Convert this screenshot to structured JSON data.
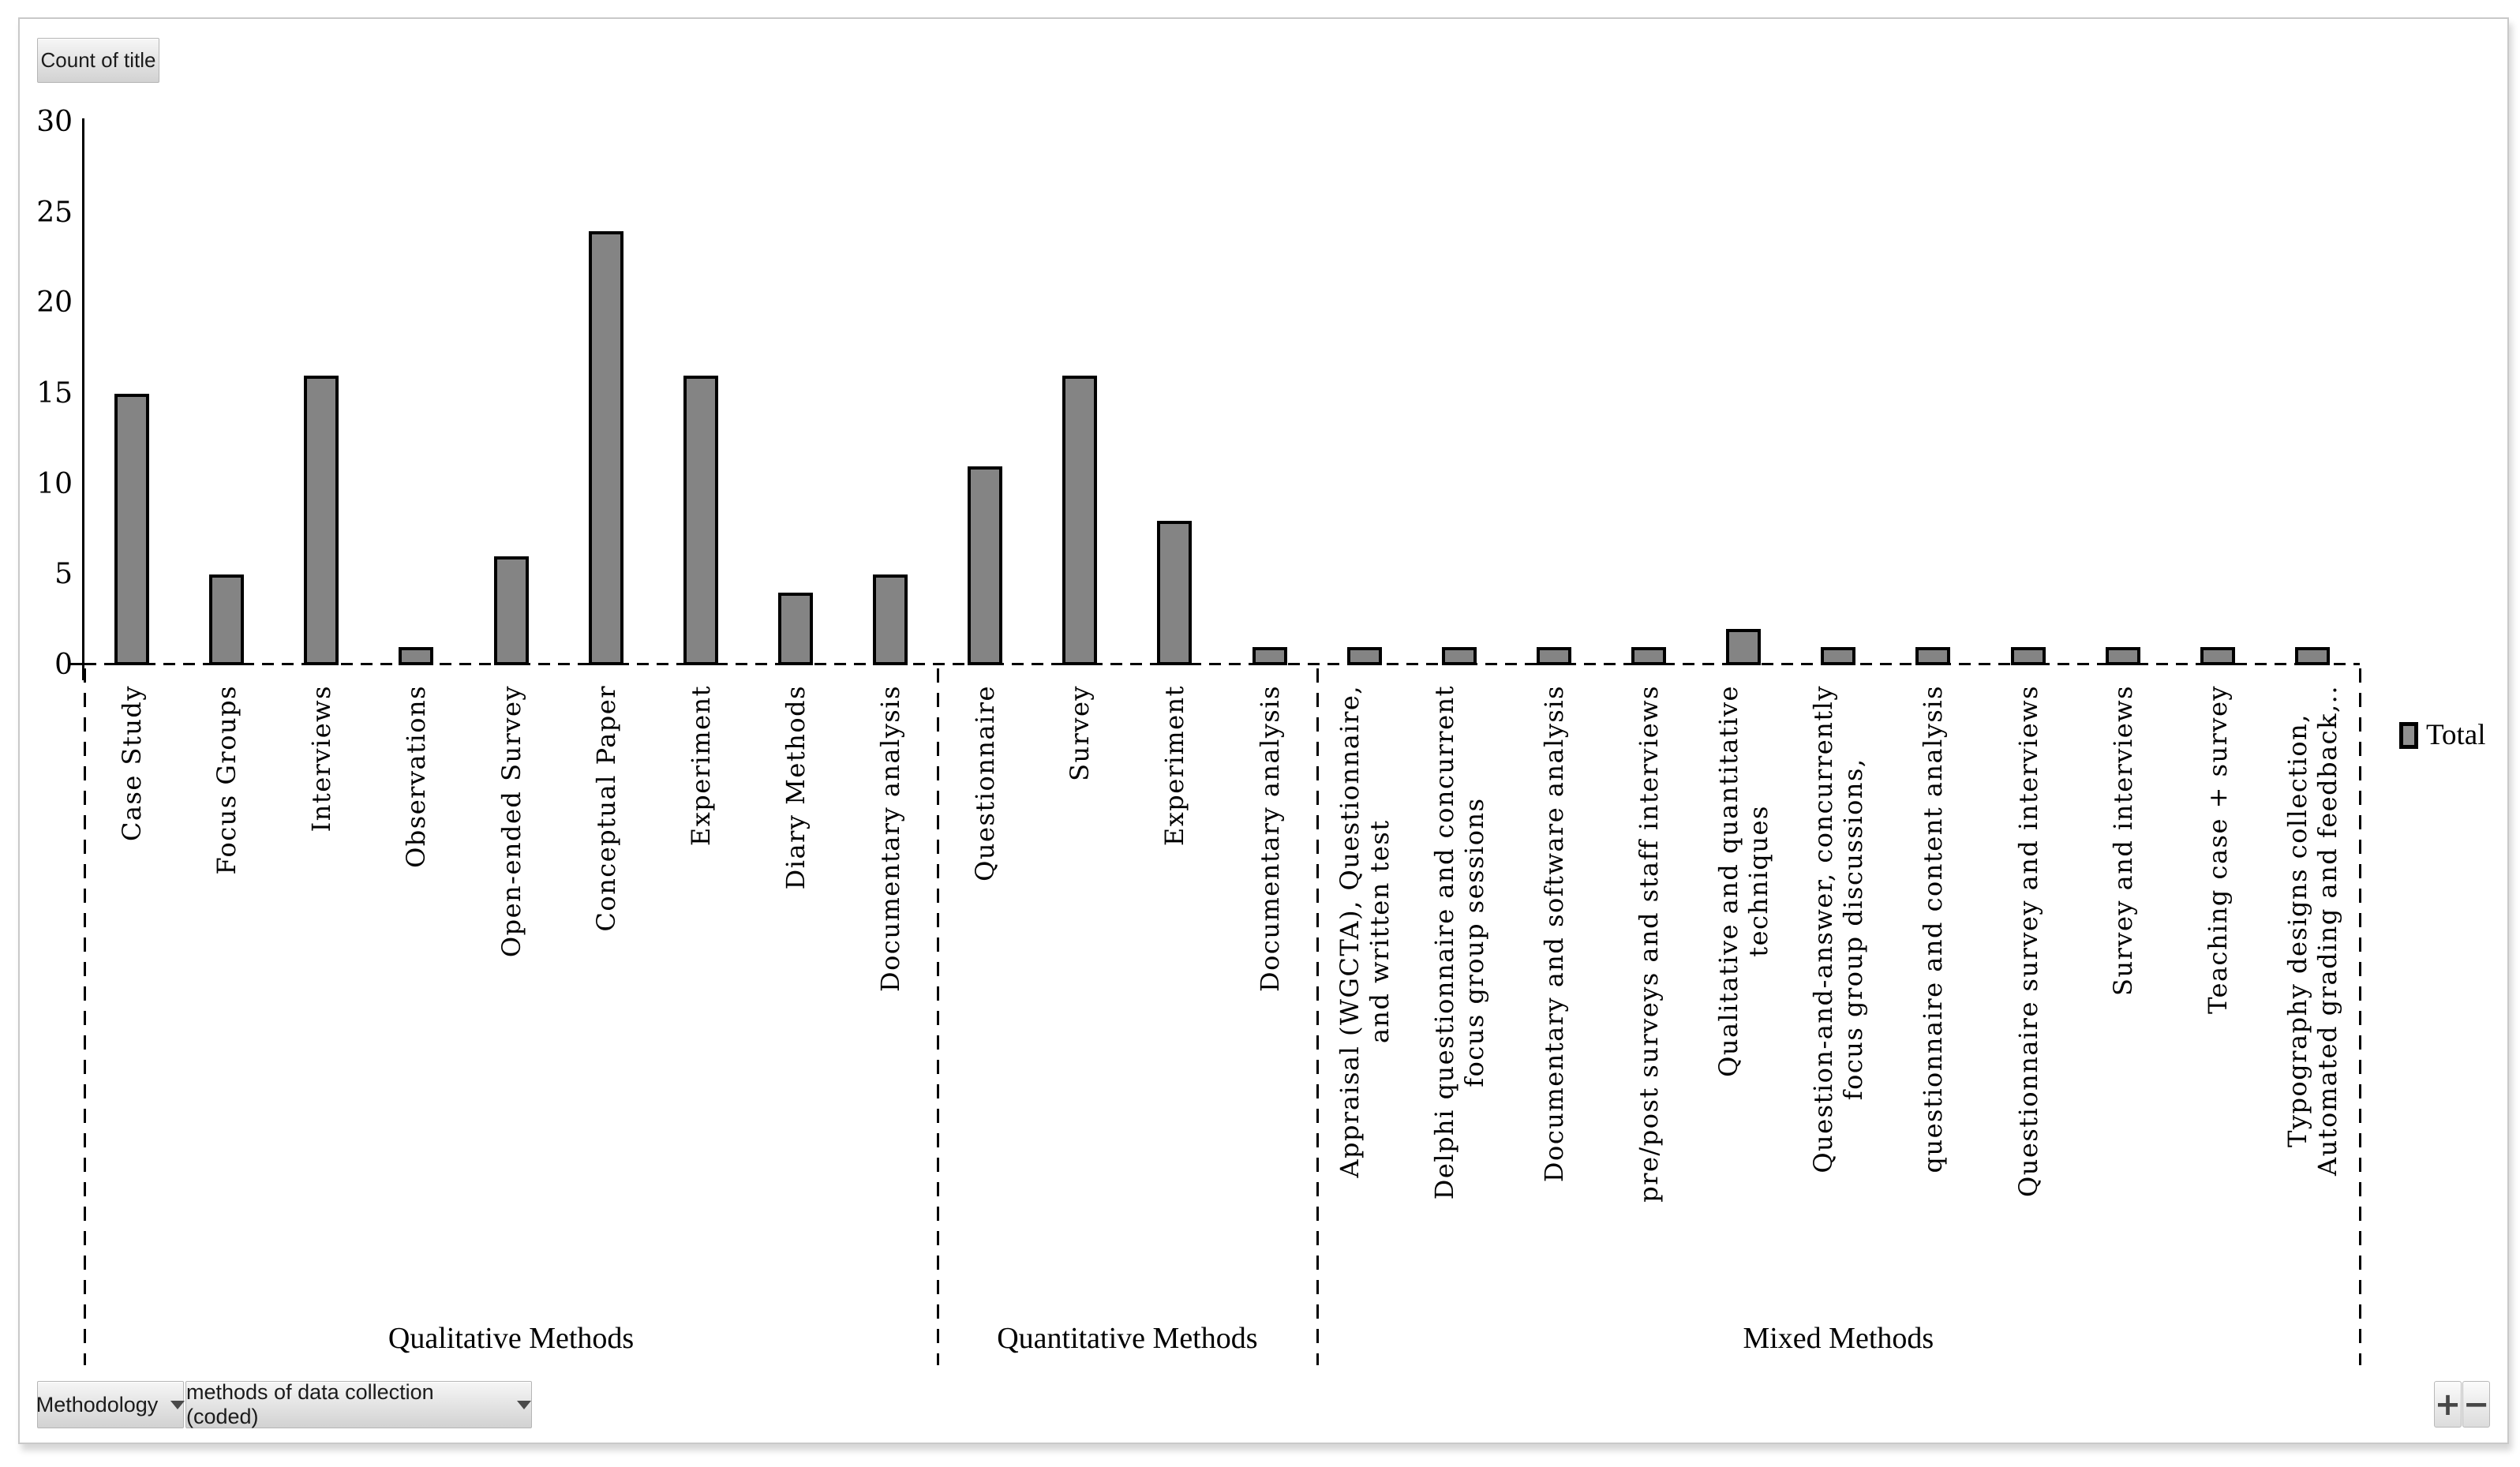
{
  "chart": {
    "count_button_label": "Count of title"
  },
  "chart_data": {
    "type": "bar",
    "title": "Count of title",
    "xlabel": "",
    "ylabel": "",
    "ylim": [
      0,
      30
    ],
    "ytick_interval": 5,
    "y_axis_ticks": [
      0,
      5,
      10,
      15,
      20,
      25,
      30
    ],
    "grid": false,
    "legend": [
      "Total"
    ],
    "legend_position": "right",
    "bar_color": "#848484",
    "bar_border_color": "#000000",
    "groups": [
      {
        "label": "Qualitative Methods",
        "categories": [
          "Case Study",
          "Focus Groups",
          "Interviews",
          "Observations",
          "Open-ended Survey",
          "Conceptual Paper",
          "Experiment",
          "Diary Methods",
          "Documentary analysis"
        ],
        "values": [
          15,
          5,
          16,
          1,
          6,
          24,
          16,
          4,
          5
        ]
      },
      {
        "label": "Quantitative Methods",
        "categories": [
          "Questionnaire",
          "Survey",
          "Experiment",
          "Documentary analysis"
        ],
        "values": [
          11,
          16,
          8,
          1
        ]
      },
      {
        "label": "Mixed Methods",
        "categories": [
          "Appraisal (WGCTA), Questionnaire,\nand written test",
          "Delphi questionnaire and concurrent\nfocus group sessions",
          "Documentary and software analysis",
          "pre/post surveys and staff interviews",
          "Qualitative and quantitative\ntechniques",
          "Question-and-answer, concurrently\nfocus group discussions,",
          "questionnaire and content analysis",
          "Questionnaire survey and interviews",
          "Survey and interviews",
          "Teaching case + survey",
          "Typography designs collection,\nAutomated grading and feedback,.."
        ],
        "values": [
          1,
          1,
          1,
          1,
          2,
          1,
          1,
          1,
          1,
          1,
          1
        ]
      }
    ]
  },
  "controls": {
    "field_buttons": [
      {
        "label": "Methodology"
      },
      {
        "label": "methods of data collection (coded)"
      }
    ],
    "zoom_in_label": "+",
    "zoom_out_label": "−"
  }
}
